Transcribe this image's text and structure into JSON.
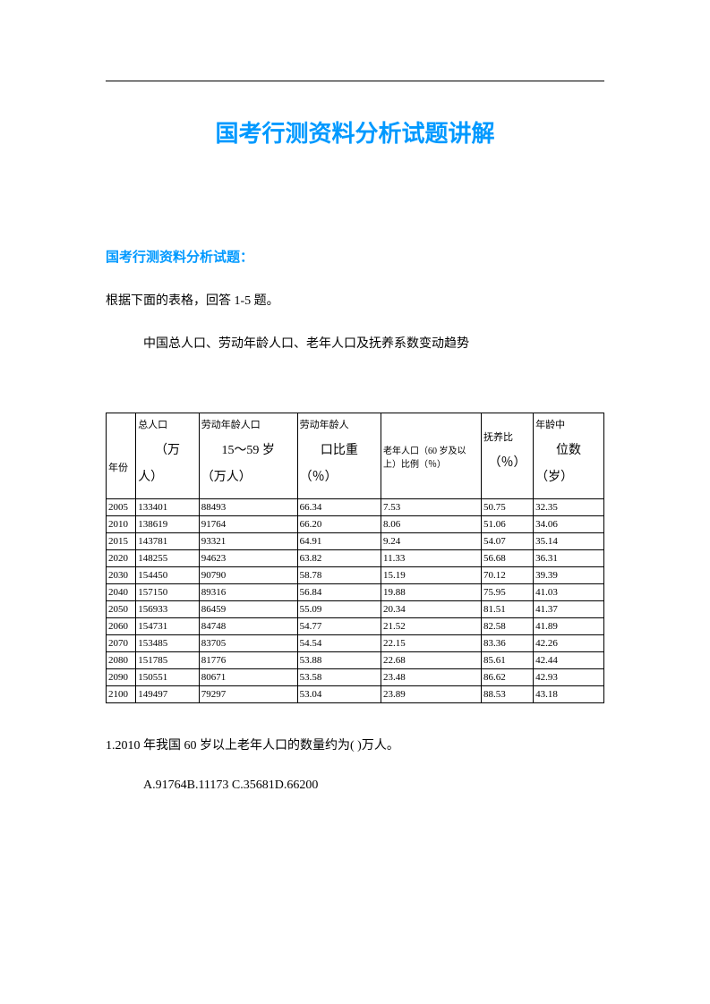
{
  "title": "国考行测资料分析试题讲解",
  "section_heading": "国考行测资料分析试题：",
  "instruction": "根据下面的表格，回答 1-5 题。",
  "table_caption": "中国总人口、劳动年龄人口、老年人口及抚养系数变动趋势",
  "headers": {
    "year": "年份",
    "total_pop_top": "总人口",
    "total_pop_mid": "（万",
    "total_pop_bot": "人）",
    "labor_top": "劳动年龄人口",
    "labor_mid": "15～59 岁",
    "labor_bot": "（万人）",
    "labor_pct_top": "劳动年龄人",
    "labor_pct_mid": "口比重",
    "labor_pct_bot": "（％）",
    "elder": "老年人口（60 岁及以上）比例（％）",
    "raise_top": "抚养比",
    "raise_bot": "（％）",
    "median_top": "年龄中",
    "median_mid": "位数",
    "median_bot": "（岁）"
  },
  "rows": [
    {
      "year": "2005",
      "pop": "133401",
      "labor": "88493",
      "labor_pct": "66.34",
      "elder": "7.53",
      "raise": "50.75",
      "median": "32.35"
    },
    {
      "year": "2010",
      "pop": "138619",
      "labor": "91764",
      "labor_pct": "66.20",
      "elder": "8.06",
      "raise": "51.06",
      "median": "34.06"
    },
    {
      "year": "2015",
      "pop": "143781",
      "labor": "93321",
      "labor_pct": "64.91",
      "elder": "9.24",
      "raise": "54.07",
      "median": "35.14"
    },
    {
      "year": "2020",
      "pop": "148255",
      "labor": "94623",
      "labor_pct": "63.82",
      "elder": "11.33",
      "raise": "56.68",
      "median": "36.31"
    },
    {
      "year": "2030",
      "pop": "154450",
      "labor": "90790",
      "labor_pct": "58.78",
      "elder": "15.19",
      "raise": "70.12",
      "median": "39.39"
    },
    {
      "year": "2040",
      "pop": "157150",
      "labor": "89316",
      "labor_pct": "56.84",
      "elder": "19.88",
      "raise": "75.95",
      "median": "41.03"
    },
    {
      "year": "2050",
      "pop": "156933",
      "labor": "86459",
      "labor_pct": "55.09",
      "elder": "20.34",
      "raise": "81.51",
      "median": "41.37"
    },
    {
      "year": "2060",
      "pop": "154731",
      "labor": "84748",
      "labor_pct": "54.77",
      "elder": "21.52",
      "raise": "82.58",
      "median": "41.89"
    },
    {
      "year": "2070",
      "pop": "153485",
      "labor": "83705",
      "labor_pct": "54.54",
      "elder": "22.15",
      "raise": "83.36",
      "median": "42.26"
    },
    {
      "year": "2080",
      "pop": "151785",
      "labor": "81776",
      "labor_pct": "53.88",
      "elder": "22.68",
      "raise": "85.61",
      "median": "42.44"
    },
    {
      "year": "2090",
      "pop": "150551",
      "labor": "80671",
      "labor_pct": "53.58",
      "elder": "23.48",
      "raise": "86.62",
      "median": "42.93"
    },
    {
      "year": "2100",
      "pop": "149497",
      "labor": "79297",
      "labor_pct": "53.04",
      "elder": "23.89",
      "raise": "88.53",
      "median": "43.18"
    }
  ],
  "question": "1.2010 年我国 60 岁以上老年人口的数量约为( )万人。",
  "options": "A.91764B.11173 C.35681D.66200"
}
